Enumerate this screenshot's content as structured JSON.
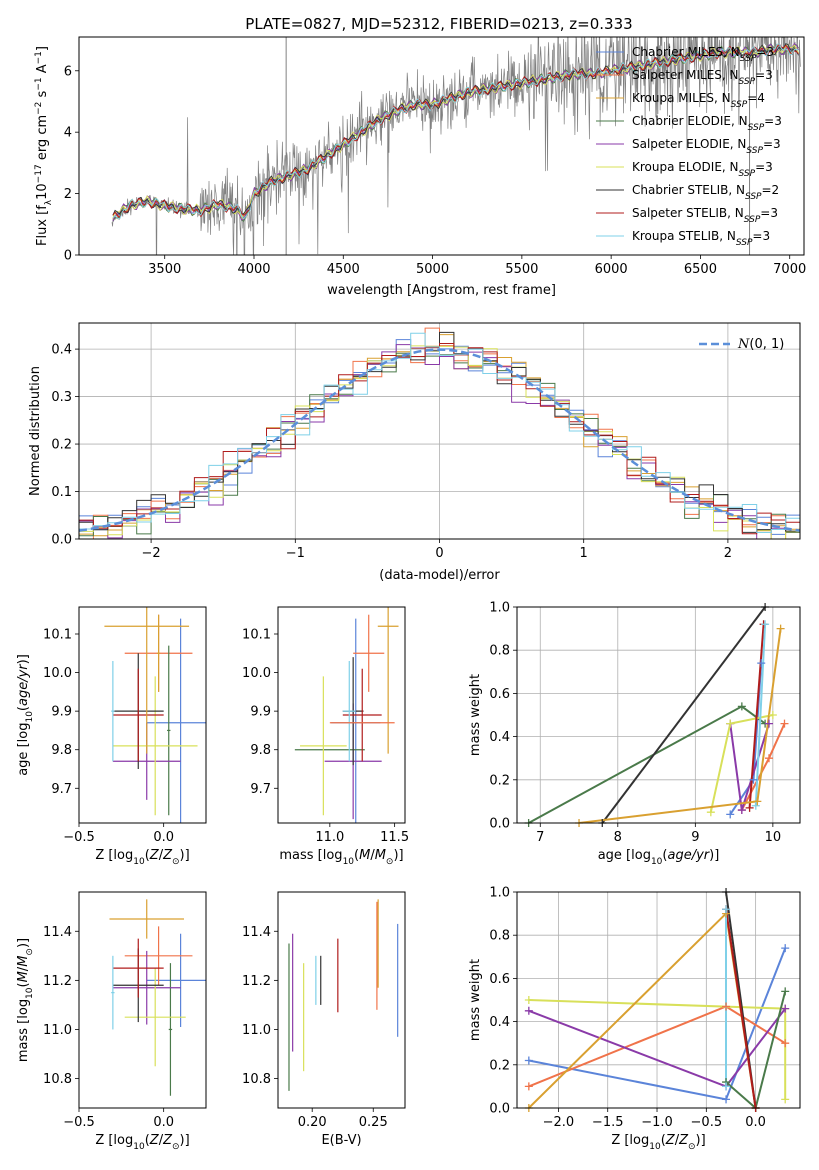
{
  "title": "PLATE=0827, MJD=52312, FIBERID=0213, z=0.333",
  "colors": {
    "Chabrier MILES": "#5b84d9",
    "Salpeter MILES": "#f0734a",
    "Kroupa MILES": "#d9a030",
    "Chabrier ELODIE": "#4a7a4a",
    "Salpeter ELODIE": "#8a3aa8",
    "Kroupa ELODIE": "#d8e05a",
    "Chabrier STELIB": "#333333",
    "Salpeter STELIB": "#b01c1c",
    "Kroupa STELIB": "#7fd0e8",
    "data": "#808080",
    "normal": "#5b8fd9"
  },
  "chart_data": [
    {
      "id": "spectrum",
      "type": "line",
      "xlabel": "wavelength [Angstrom, rest frame]",
      "ylabel": "Flux [f_λ 10^-17 erg cm^-2 s^-1 A^-1]",
      "xlim": [
        3020,
        7080
      ],
      "ylim": [
        0,
        7.1
      ],
      "xticks": [
        3500,
        4000,
        4500,
        5000,
        5500,
        6000,
        6500,
        7000
      ],
      "yticks": [
        0,
        2,
        4,
        6
      ],
      "legend_position": "top-right",
      "legend": [
        {
          "name": "Chabrier MILES",
          "label": "Chabrier MILES, N",
          "sub": "SSP",
          "suffix": "=3"
        },
        {
          "name": "Salpeter MILES",
          "label": "Salpeter MILES, N",
          "sub": "SSP",
          "suffix": "=3"
        },
        {
          "name": "Kroupa MILES",
          "label": "Kroupa MILES, N",
          "sub": "SSP",
          "suffix": "=4"
        },
        {
          "name": "Chabrier ELODIE",
          "label": "Chabrier ELODIE, N",
          "sub": "SSP",
          "suffix": "=3"
        },
        {
          "name": "Salpeter ELODIE",
          "label": "Salpeter ELODIE, N",
          "sub": "SSP",
          "suffix": "=3"
        },
        {
          "name": "Kroupa ELODIE",
          "label": "Kroupa ELODIE, N",
          "sub": "SSP",
          "suffix": "=3"
        },
        {
          "name": "Chabrier STELIB",
          "label": "Chabrier STELIB, N",
          "sub": "SSP",
          "suffix": "=2"
        },
        {
          "name": "Salpeter STELIB",
          "label": "Salpeter STELIB, N",
          "sub": "SSP",
          "suffix": "=3"
        },
        {
          "name": "Kroupa STELIB",
          "label": "Kroupa STELIB, N",
          "sub": "SSP",
          "suffix": "=3"
        }
      ],
      "continuum": [
        [
          3200,
          0.0
        ],
        [
          3210,
          1.2
        ],
        [
          3300,
          1.6
        ],
        [
          3400,
          1.75
        ],
        [
          3500,
          1.6
        ],
        [
          3600,
          1.5
        ],
        [
          3700,
          1.45
        ],
        [
          3800,
          1.65
        ],
        [
          3900,
          1.5
        ],
        [
          3950,
          1.2
        ],
        [
          4000,
          2.0
        ],
        [
          4100,
          2.4
        ],
        [
          4200,
          2.6
        ],
        [
          4300,
          2.8
        ],
        [
          4400,
          3.2
        ],
        [
          4500,
          3.6
        ],
        [
          4600,
          4.0
        ],
        [
          4700,
          4.4
        ],
        [
          4800,
          4.7
        ],
        [
          4900,
          4.9
        ],
        [
          5000,
          4.9
        ],
        [
          5100,
          5.1
        ],
        [
          5200,
          5.3
        ],
        [
          5300,
          5.4
        ],
        [
          5400,
          5.5
        ],
        [
          5500,
          5.6
        ],
        [
          5600,
          5.7
        ],
        [
          5700,
          5.8
        ],
        [
          5800,
          5.9
        ],
        [
          5900,
          5.9
        ],
        [
          6000,
          6.0
        ],
        [
          6100,
          6.1
        ],
        [
          6200,
          6.2
        ],
        [
          6300,
          6.3
        ],
        [
          6400,
          6.4
        ],
        [
          6500,
          6.5
        ],
        [
          6600,
          6.6
        ],
        [
          6700,
          6.6
        ],
        [
          6800,
          6.6
        ],
        [
          6900,
          6.7
        ]
      ]
    },
    {
      "id": "residuals",
      "type": "histogram",
      "xlabel": "(data-model)/error",
      "ylabel": "Normed distribution",
      "xlim": [
        -2.5,
        2.5
      ],
      "ylim": [
        0,
        0.455
      ],
      "xticks": [
        -2,
        -1,
        0,
        1,
        2
      ],
      "yticks": [
        0.0,
        0.1,
        0.2,
        0.3,
        0.4
      ],
      "legend": [
        {
          "name": "normal",
          "label": "N(0,1)"
        }
      ],
      "legend_position": "top-right",
      "bin_width": 0.1
    },
    {
      "id": "age-vs-Z",
      "type": "errorbar",
      "xlabel": "Z [log10(Z/Z⊙)]",
      "ylabel": "age  [log10(age/yr)]",
      "xlim": [
        -0.5,
        0.25
      ],
      "ylim": [
        9.61,
        10.17
      ],
      "xticks": [
        -0.5,
        0.0
      ],
      "yticks": [
        9.7,
        9.8,
        9.9,
        10.0,
        10.1
      ],
      "points": [
        {
          "series": "Chabrier MILES",
          "x": 0.1,
          "xerr": 0.2,
          "y": 9.87,
          "yerr": 0.27
        },
        {
          "series": "Salpeter MILES",
          "x": -0.03,
          "xerr": 0.2,
          "y": 10.05,
          "yerr": 0.1
        },
        {
          "series": "Kroupa MILES",
          "x": -0.03,
          "xerr": 0.01,
          "y": 10.05,
          "yerr": 0.1
        },
        {
          "series": "Chabrier ELODIE",
          "x": 0.03,
          "xerr": 0.01,
          "y": 9.85,
          "yerr": 0.22
        },
        {
          "series": "Salpeter ELODIE",
          "x": -0.1,
          "xerr": 0.2,
          "y": 9.77,
          "yerr": 0.1
        },
        {
          "series": "Kroupa ELODIE",
          "x": -0.05,
          "xerr": 0.25,
          "y": 9.81,
          "yerr": 0.18
        },
        {
          "series": "Chabrier STELIB",
          "x": -0.15,
          "xerr": 0.15,
          "y": 9.9,
          "yerr": 0.15
        },
        {
          "series": "Salpeter STELIB",
          "x": -0.15,
          "xerr": 0.15,
          "y": 9.89,
          "yerr": 0.12
        },
        {
          "series": "Kroupa STELIB",
          "x": -0.3,
          "xerr": 0.01,
          "y": 9.9,
          "yerr": 0.13
        },
        {
          "series": "Kroupa MILES",
          "x": -0.1,
          "xerr": 0.25,
          "y": 10.12,
          "yerr": 0.33
        }
      ]
    },
    {
      "id": "age-vs-mass",
      "type": "errorbar",
      "xlabel": "mass [log10(M/M⊙)]",
      "ylabel": "",
      "xlim": [
        10.6,
        11.58
      ],
      "ylim": [
        9.61,
        10.17
      ],
      "xticks": [
        11.0,
        11.5
      ],
      "yticks": [
        9.7,
        9.8,
        9.9,
        10.0,
        10.1
      ],
      "points": [
        {
          "series": "Chabrier MILES",
          "x": 11.2,
          "xerr": 0.19,
          "y": 9.87,
          "yerr": 0.27
        },
        {
          "series": "Salpeter MILES",
          "x": 11.3,
          "xerr": 0.12,
          "y": 10.05,
          "yerr": 0.1
        },
        {
          "series": "Kroupa MILES",
          "x": 11.45,
          "xerr": 0.08,
          "y": 10.12,
          "yerr": 0.33
        },
        {
          "series": "Chabrier ELODIE",
          "x": 11.0,
          "xerr": 0.27,
          "y": 9.8,
          "yerr": 0.0
        },
        {
          "series": "Salpeter ELODIE",
          "x": 11.18,
          "xerr": 0.22,
          "y": 9.77,
          "yerr": 0.15
        },
        {
          "series": "Kroupa ELODIE",
          "x": 10.95,
          "xerr": 0.18,
          "y": 9.81,
          "yerr": 0.18
        },
        {
          "series": "Chabrier STELIB",
          "x": 11.18,
          "xerr": 0.08,
          "y": 9.9,
          "yerr": 0.14
        },
        {
          "series": "Salpeter STELIB",
          "x": 11.25,
          "xerr": 0.15,
          "y": 9.89,
          "yerr": 0.12
        },
        {
          "series": "Kroupa STELIB",
          "x": 11.15,
          "xerr": 0.05,
          "y": 9.9,
          "yerr": 0.13
        },
        {
          "series": "Salpeter MILES",
          "x": 11.25,
          "xerr": 0.25,
          "y": 9.87,
          "yerr": 0.0
        }
      ]
    },
    {
      "id": "mass-weight-vs-age",
      "type": "line",
      "xlabel": "age  [log10(age/yr)]",
      "ylabel": "mass weight",
      "xlim": [
        6.7,
        10.35
      ],
      "ylim": [
        0,
        1.0
      ],
      "xticks": [
        7,
        8,
        9,
        10
      ],
      "yticks": [
        0.0,
        0.2,
        0.4,
        0.6,
        0.8,
        1.0
      ],
      "series": [
        {
          "name": "Chabrier MILES",
          "points": [
            [
              9.45,
              0.04
            ],
            [
              9.75,
              0.2
            ],
            [
              9.85,
              0.74
            ]
          ]
        },
        {
          "name": "Salpeter MILES",
          "points": [
            [
              9.6,
              0.06
            ],
            [
              9.95,
              0.3
            ],
            [
              10.15,
              0.46
            ]
          ]
        },
        {
          "name": "Chabrier ELODIE",
          "points": [
            [
              6.85,
              0.0
            ],
            [
              9.6,
              0.54
            ],
            [
              9.9,
              0.46
            ]
          ]
        },
        {
          "name": "Salpeter ELODIE",
          "points": [
            [
              9.45,
              0.46
            ],
            [
              9.6,
              0.06
            ],
            [
              9.95,
              0.46
            ]
          ]
        },
        {
          "name": "Kroupa ELODIE",
          "points": [
            [
              9.2,
              0.05
            ],
            [
              9.45,
              0.46
            ],
            [
              10.0,
              0.5
            ]
          ]
        },
        {
          "name": "Chabrier STELIB",
          "points": [
            [
              7.8,
              0.0
            ],
            [
              9.9,
              1.0
            ]
          ]
        },
        {
          "name": "Salpeter STELIB",
          "points": [
            [
              9.7,
              0.07
            ],
            [
              9.88,
              0.92
            ]
          ]
        },
        {
          "name": "Kroupa STELIB",
          "points": [
            [
              9.78,
              0.08
            ],
            [
              9.9,
              0.92
            ]
          ]
        },
        {
          "name": "Kroupa MILES",
          "points": [
            [
              7.5,
              0.0
            ],
            [
              9.8,
              0.1
            ],
            [
              10.1,
              0.9
            ]
          ]
        }
      ]
    },
    {
      "id": "mass-vs-Z",
      "type": "errorbar",
      "xlabel": "Z [log10(Z/Z⊙)]",
      "ylabel": "mass [log10(M/M⊙)]",
      "xlim": [
        -0.5,
        0.25
      ],
      "ylim": [
        10.68,
        11.56
      ],
      "xticks": [
        -0.5,
        0.0
      ],
      "yticks": [
        10.8,
        11.0,
        11.2,
        11.4
      ],
      "points": [
        {
          "series": "Chabrier MILES",
          "x": 0.1,
          "xerr": 0.2,
          "y": 11.2,
          "yerr": 0.19
        },
        {
          "series": "Salpeter MILES",
          "x": -0.03,
          "xerr": 0.2,
          "y": 11.3,
          "yerr": 0.12
        },
        {
          "series": "Kroupa MILES",
          "x": -0.1,
          "xerr": 0.22,
          "y": 11.45,
          "yerr": 0.08
        },
        {
          "series": "Chabrier ELODIE",
          "x": 0.04,
          "xerr": 0.01,
          "y": 11.0,
          "yerr": 0.27
        },
        {
          "series": "Salpeter ELODIE",
          "x": -0.1,
          "xerr": 0.2,
          "y": 11.17,
          "yerr": 0.15
        },
        {
          "series": "Kroupa ELODIE",
          "x": -0.05,
          "xerr": 0.18,
          "y": 11.05,
          "yerr": 0.2
        },
        {
          "series": "Chabrier STELIB",
          "x": -0.15,
          "xerr": 0.15,
          "y": 11.18,
          "yerr": 0.15
        },
        {
          "series": "Salpeter STELIB",
          "x": -0.15,
          "xerr": 0.15,
          "y": 11.25,
          "yerr": 0.12
        },
        {
          "series": "Kroupa STELIB",
          "x": -0.3,
          "xerr": 0.01,
          "y": 11.15,
          "yerr": 0.15
        }
      ]
    },
    {
      "id": "mass-vs-ebv",
      "type": "errorbar",
      "xlabel": "E(B-V)",
      "ylabel": "",
      "xlim": [
        0.172,
        0.276
      ],
      "ylim": [
        10.68,
        11.56
      ],
      "xticks": [
        0.2,
        0.25
      ],
      "yticks": [
        10.8,
        11.0,
        11.2,
        11.4
      ],
      "points": [
        {
          "series": "Chabrier MILES",
          "x": 0.27,
          "xerr": 0.0,
          "y": 11.2,
          "yerr": 0.23
        },
        {
          "series": "Salpeter MILES",
          "x": 0.253,
          "xerr": 0.0,
          "y": 11.3,
          "yerr": 0.22
        },
        {
          "series": "Kroupa MILES",
          "x": 0.254,
          "xerr": 0.0,
          "y": 11.35,
          "yerr": 0.18
        },
        {
          "series": "Chabrier ELODIE",
          "x": 0.181,
          "xerr": 0.0,
          "y": 11.05,
          "yerr": 0.3
        },
        {
          "series": "Salpeter ELODIE",
          "x": 0.184,
          "xerr": 0.0,
          "y": 11.15,
          "yerr": 0.24
        },
        {
          "series": "Kroupa ELODIE",
          "x": 0.193,
          "xerr": 0.0,
          "y": 11.05,
          "yerr": 0.22
        },
        {
          "series": "Chabrier STELIB",
          "x": 0.207,
          "xerr": 0.0,
          "y": 11.2,
          "yerr": 0.1
        },
        {
          "series": "Salpeter STELIB",
          "x": 0.221,
          "xerr": 0.0,
          "y": 11.22,
          "yerr": 0.15
        },
        {
          "series": "Kroupa STELIB",
          "x": 0.203,
          "xerr": 0.0,
          "y": 11.2,
          "yerr": 0.1
        }
      ]
    },
    {
      "id": "mass-weight-vs-Z",
      "type": "line",
      "xlabel": "Z [log10(Z/Z⊙)]",
      "ylabel": "mass weight",
      "xlim": [
        -2.42,
        0.45
      ],
      "ylim": [
        0,
        1.0
      ],
      "xticks": [
        -2.0,
        -1.5,
        -1.0,
        -0.5,
        0.0
      ],
      "yticks": [
        0.0,
        0.2,
        0.4,
        0.6,
        0.8,
        1.0
      ],
      "series": [
        {
          "name": "Chabrier MILES",
          "points": [
            [
              -2.3,
              0.22
            ],
            [
              -0.3,
              0.04
            ],
            [
              0.3,
              0.74
            ]
          ]
        },
        {
          "name": "Salpeter MILES",
          "points": [
            [
              -2.3,
              0.1
            ],
            [
              -0.3,
              0.47
            ],
            [
              0.3,
              0.3
            ]
          ]
        },
        {
          "name": "Kroupa ELODIE",
          "points": [
            [
              -2.3,
              0.5
            ],
            [
              0.3,
              0.46
            ],
            [
              0.3,
              0.04
            ]
          ]
        },
        {
          "name": "Salpeter ELODIE",
          "points": [
            [
              -2.3,
              0.45
            ],
            [
              -0.3,
              0.1
            ],
            [
              0.3,
              0.46
            ]
          ]
        },
        {
          "name": "Chabrier ELODIE",
          "points": [
            [
              -0.3,
              0.12
            ],
            [
              0.0,
              0.0
            ],
            [
              0.3,
              0.54
            ]
          ]
        },
        {
          "name": "Kroupa MILES",
          "points": [
            [
              -2.3,
              0.0
            ],
            [
              -0.3,
              0.9
            ],
            [
              0.0,
              0.0
            ]
          ]
        },
        {
          "name": "Chabrier STELIB",
          "points": [
            [
              -0.3,
              1.0
            ],
            [
              0.0,
              0.0
            ]
          ]
        },
        {
          "name": "Salpeter STELIB",
          "points": [
            [
              -0.3,
              0.92
            ],
            [
              0.0,
              0.0
            ]
          ]
        },
        {
          "name": "Kroupa STELIB",
          "points": [
            [
              -0.3,
              0.92
            ],
            [
              -0.3,
              0.1
            ]
          ]
        }
      ]
    }
  ]
}
